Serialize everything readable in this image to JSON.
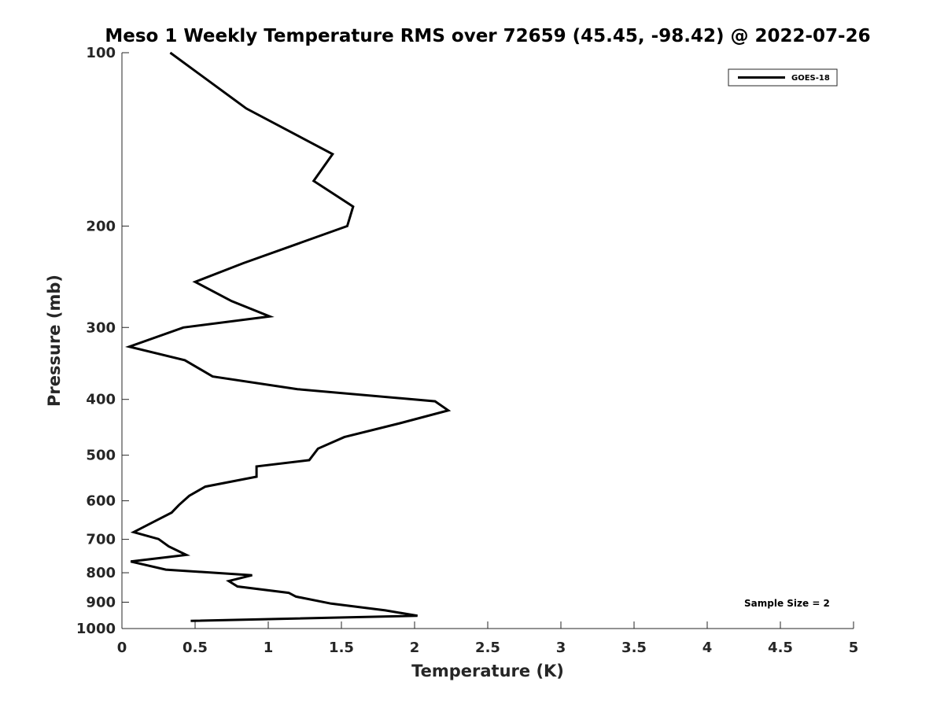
{
  "chart_data": {
    "type": "line",
    "title": "Meso 1 Weekly Temperature RMS over 72659 (45.45, -98.42) @ 2022-07-26",
    "xlabel": "Temperature (K)",
    "ylabel": "Pressure (mb)",
    "xlim": [
      0,
      5
    ],
    "ylim": [
      100,
      1000
    ],
    "y_scale": "log",
    "y_reversed": true,
    "x_ticks": [
      "0",
      "0.5",
      "1",
      "1.5",
      "2",
      "2.5",
      "3",
      "3.5",
      "4",
      "4.5",
      "5"
    ],
    "y_ticks": [
      "100",
      "200",
      "300",
      "400",
      "500",
      "600",
      "700",
      "800",
      "900",
      "1000"
    ],
    "grid": false,
    "legend_position": "top-right",
    "annotation": "Sample Size = 2",
    "series": [
      {
        "name": "GOES-18",
        "color": "#000000",
        "x": [
          0.33,
          0.85,
          1.44,
          1.31,
          1.58,
          1.54,
          0.83,
          0.5,
          0.75,
          1.01,
          0.42,
          0.05,
          0.43,
          0.62,
          1.2,
          2.14,
          2.23,
          1.9,
          1.52,
          1.34,
          1.28,
          0.92,
          0.92,
          0.57,
          0.46,
          0.39,
          0.34,
          0.23,
          0.08,
          0.25,
          0.32,
          0.44,
          0.06,
          0.3,
          0.89,
          0.73,
          0.79,
          1.14,
          1.19,
          1.43,
          1.8,
          2.02,
          0.47
        ],
        "y": [
          100,
          125,
          150,
          167,
          185,
          200,
          232,
          250,
          270,
          287,
          300,
          324,
          342,
          365,
          384,
          403,
          418,
          440,
          465,
          487,
          510,
          523,
          545,
          567,
          588,
          610,
          629,
          650,
          680,
          699,
          720,
          745,
          765,
          790,
          808,
          827,
          845,
          867,
          880,
          905,
          930,
          950,
          970
        ]
      }
    ]
  }
}
